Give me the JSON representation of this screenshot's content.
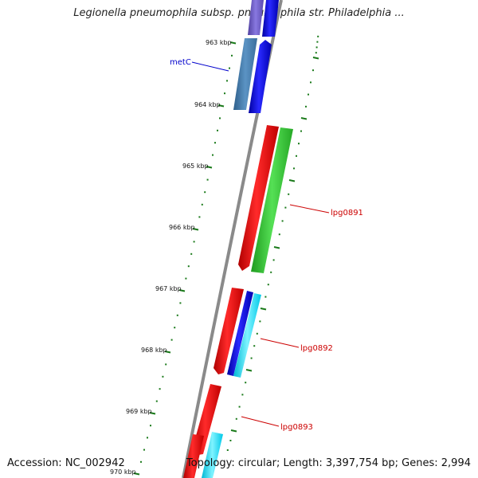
{
  "title": "Legionella pneumophila subsp. pneumophila str. Philadelphia ...",
  "footer": {
    "accession": "Accession: NC_002942",
    "topology": "Topology: circular; Length: 3,397,754 bp; Genes: 2,994"
  },
  "kbp_labels": [
    "963 kbp",
    "964 kbp",
    "965 kbp",
    "966 kbp",
    "967 kbp",
    "968 kbp",
    "969 kbp",
    "970 kbp"
  ],
  "gene_labels": [
    {
      "name": "metC",
      "color": "#0000cc"
    },
    {
      "name": "lpg0891",
      "color": "#cc0000"
    },
    {
      "name": "lpg0892",
      "color": "#cc0000"
    },
    {
      "name": "lpg0893",
      "color": "#cc0000"
    }
  ],
  "colors": {
    "backbone": "#8a8a8a",
    "tick": "#1a7a1a",
    "forward_red": "#ff0000",
    "blue": "#0000ee",
    "steel_blue": "#4682b4",
    "green": "#33cc33",
    "cyan": "#00e5ff",
    "purple": "#6a5acd"
  }
}
